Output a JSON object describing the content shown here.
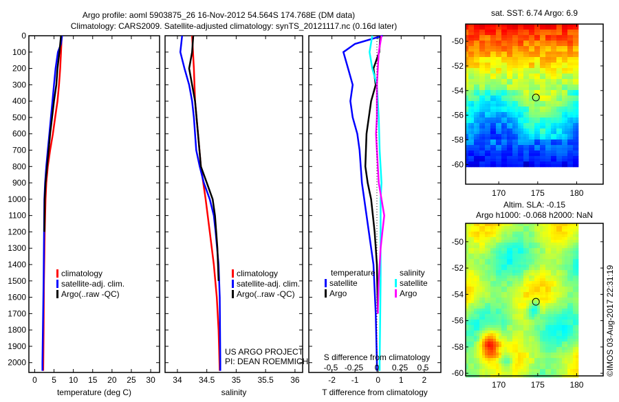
{
  "title_line1": "Argo profile: aoml 5903875_26 16-Nov-2012 54.564S 174.768E (DM data)",
  "title_line2": "Climatology: CARS2009. Satellite-adjusted climatology: synTS_20121117.nc (0.16d later)",
  "colors": {
    "clim": "#ff0000",
    "sat": "#0000ff",
    "argo": "#000000",
    "ssat": "#00ffff",
    "sargo": "#ff00ff"
  },
  "chart_data": [
    {
      "type": "line",
      "id": "temperature",
      "xlabel": "temperature (deg C)",
      "ylabel": "",
      "xlim": [
        -1.5,
        32.3
      ],
      "ylim": [
        2060,
        0
      ],
      "xticks": [
        0,
        5,
        10,
        15,
        20,
        25,
        30
      ],
      "yticks": [
        0,
        100,
        200,
        300,
        400,
        500,
        600,
        700,
        800,
        900,
        1000,
        1100,
        1200,
        1300,
        1400,
        1500,
        1600,
        1700,
        1800,
        1900,
        2000
      ],
      "legend": [
        "climatology",
        "satellite-adj. clim.",
        "Argo(..raw -QC)"
      ],
      "series": [
        {
          "name": "climatology",
          "color": "#ff0000",
          "depth": [
            0,
            100,
            200,
            300,
            400,
            500,
            600,
            700,
            800,
            900,
            1000,
            1200,
            1500,
            1800,
            2050
          ],
          "values": [
            7.0,
            6.8,
            6.6,
            6.3,
            5.9,
            5.3,
            4.7,
            4.0,
            3.4,
            3.0,
            2.8,
            2.6,
            2.4,
            2.3,
            2.2
          ]
        },
        {
          "name": "satellite-adj. clim.",
          "color": "#0000ff",
          "depth": [
            0,
            50,
            100,
            200,
            300,
            400,
            500,
            600,
            700,
            800,
            900,
            1000,
            1500,
            2000,
            2050
          ],
          "values": [
            7.1,
            6.8,
            6.0,
            5.4,
            5.0,
            4.6,
            4.2,
            3.8,
            3.4,
            3.0,
            2.7,
            2.5,
            2.3,
            2.0,
            2.0
          ]
        },
        {
          "name": "Argo(..raw -QC)",
          "color": "#000000",
          "depth": [
            0,
            100,
            200,
            300,
            400,
            500,
            600,
            700,
            800,
            900,
            1000,
            1200
          ],
          "values": [
            6.8,
            6.4,
            5.9,
            5.6,
            5.0,
            4.5,
            4.0,
            3.6,
            3.2,
            2.8,
            2.6,
            2.5
          ]
        }
      ]
    },
    {
      "type": "line",
      "id": "salinity",
      "xlabel": "salinity",
      "xlim": [
        33.79,
        36.13
      ],
      "ylim": [
        2060,
        0
      ],
      "xticks": [
        34,
        34.5,
        35,
        35.5,
        36
      ],
      "legend": [
        "climatology",
        "satellite-adj. clim.",
        "Argo(..raw -QC)"
      ],
      "annotation": [
        "US ARGO PROJECT",
        "PI: DEAN ROEMMICH"
      ],
      "series": [
        {
          "name": "climatology",
          "color": "#ff0000",
          "depth": [
            0,
            200,
            400,
            600,
            800,
            1000,
            1200,
            1400,
            1600,
            1800,
            2050
          ],
          "values": [
            34.25,
            34.28,
            34.3,
            34.35,
            34.4,
            34.48,
            34.55,
            34.62,
            34.67,
            34.7,
            34.72
          ]
        },
        {
          "name": "satellite-adj. clim.",
          "color": "#0000ff",
          "depth": [
            0,
            100,
            200,
            300,
            400,
            500,
            600,
            700,
            800,
            900,
            1000,
            1100,
            1200,
            1400,
            1600,
            2000,
            2050
          ],
          "values": [
            34.08,
            34.05,
            34.12,
            34.2,
            34.25,
            34.28,
            34.3,
            34.32,
            34.38,
            34.45,
            34.55,
            34.62,
            34.65,
            34.7,
            34.72,
            34.73,
            34.73
          ]
        },
        {
          "name": "Argo(..raw -QC)",
          "color": "#000000",
          "depth": [
            0,
            100,
            200,
            300,
            400,
            600,
            800,
            900,
            1000,
            1100,
            1300,
            1500
          ],
          "values": [
            34.27,
            34.25,
            34.2,
            34.25,
            34.3,
            34.35,
            34.4,
            34.5,
            34.6,
            34.64,
            34.68,
            34.7
          ]
        }
      ]
    },
    {
      "type": "line",
      "id": "differences",
      "xlabel": "T difference from climatology",
      "x2label": "S difference from climatology",
      "xlim": [
        -3.0,
        2.72
      ],
      "ylim": [
        2060,
        0
      ],
      "xticks": [
        -2,
        -1,
        0,
        1,
        2
      ],
      "x2ticks": [
        -0.5,
        -0.25,
        0,
        0.25,
        0.5
      ],
      "x2ticklabels": [
        "-0.5",
        "-0.25",
        "0",
        "0.25",
        "0.5"
      ],
      "legend_temperature": {
        "title": "temperature",
        "items": [
          "satellite",
          "Argo"
        ]
      },
      "legend_salinity": {
        "title": "salinity",
        "items": [
          "satellite",
          "Argo"
        ]
      },
      "series": [
        {
          "name": "T satellite",
          "color": "#0000ff",
          "scale": "T",
          "depth": [
            0,
            50,
            100,
            200,
            300,
            400,
            500,
            600,
            700,
            800,
            900,
            1000,
            1200,
            1400,
            1700,
            2000,
            2050
          ],
          "values": [
            0.2,
            -1.0,
            -1.5,
            -1.3,
            -1.1,
            -1.2,
            -1.1,
            -0.9,
            -0.8,
            -0.75,
            -0.7,
            -0.6,
            -0.4,
            -0.2,
            -0.1,
            -0.05,
            -0.05
          ]
        },
        {
          "name": "T Argo",
          "color": "#000000",
          "scale": "T",
          "depth": [
            0,
            100,
            200,
            300,
            400,
            600,
            800,
            900,
            1000,
            1200,
            1400,
            1700
          ],
          "values": [
            0.1,
            0.05,
            -0.2,
            -0.1,
            -0.3,
            -0.5,
            -0.55,
            -0.45,
            -0.3,
            -0.15,
            -0.05,
            -0.01
          ]
        },
        {
          "name": "S satellite",
          "color": "#00ffff",
          "scale": "S",
          "depth": [
            0,
            100,
            200,
            300,
            500,
            700,
            900,
            1000,
            1200,
            1500,
            2000,
            2050
          ],
          "values": [
            -0.05,
            -0.08,
            -0.05,
            0.0,
            0.02,
            0.03,
            0.05,
            0.04,
            0.04,
            0.04,
            0.03,
            0.03
          ]
        },
        {
          "name": "S Argo",
          "color": "#ff00ff",
          "scale": "S",
          "depth": [
            0,
            100,
            300,
            500,
            600,
            700,
            900,
            1000,
            1100,
            1200,
            1300,
            1500,
            1700
          ],
          "values": [
            0.05,
            0.02,
            0.0,
            0.0,
            -0.01,
            0.0,
            0.02,
            0.05,
            0.08,
            0.06,
            0.04,
            0.02,
            0.01
          ]
        }
      ]
    },
    {
      "type": "heatmap",
      "id": "sst-map",
      "title": "sat. SST: 6.74  Argo: 6.9",
      "xlim": [
        165.75,
        183.4
      ],
      "ylim": [
        -61.6,
        -48.6
      ],
      "xticks": [
        170,
        175,
        180
      ],
      "yticks": [
        -50,
        -52,
        -54,
        -56,
        -58,
        -60
      ],
      "argo_position": [
        174.768,
        -54.564
      ]
    },
    {
      "type": "heatmap",
      "id": "sla-map",
      "title": [
        "Altim. SLA: -0.15",
        "Argo h1000: -0.068 h2000: NaN"
      ],
      "xlim": [
        165.75,
        183.4
      ],
      "ylim": [
        -60.2,
        -48.6
      ],
      "xticks": [
        170,
        175,
        180
      ],
      "yticks": [
        -50,
        -52,
        -54,
        -56,
        -58,
        -60
      ],
      "argo_position": [
        174.768,
        -54.564
      ]
    }
  ],
  "side_label": "©IMOS 03-Aug-2017 22:31:19"
}
